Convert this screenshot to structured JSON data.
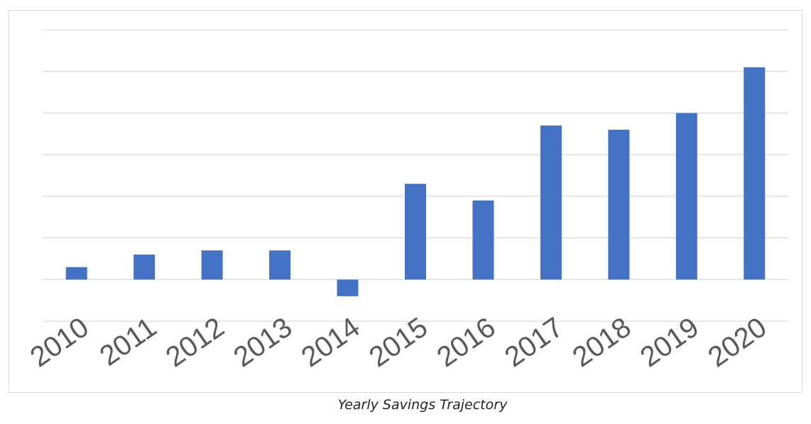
{
  "caption": "Yearly Savings Trajectory",
  "body_text": "",
  "colors": {
    "bar": "#4472C4",
    "gridline": "#d9d9d9",
    "tick_label": "#595959"
  },
  "chart_data": {
    "type": "bar",
    "title": "",
    "xlabel": "",
    "ylabel": "",
    "categories": [
      "2010",
      "2011",
      "2012",
      "2013",
      "2014",
      "2015",
      "2016",
      "2017",
      "2018",
      "2019",
      "2020"
    ],
    "series": [
      {
        "values": [
          0.3,
          0.6,
          0.7,
          0.7,
          -0.4,
          2.3,
          1.9,
          3.7,
          3.6,
          4.0,
          5.1
        ]
      }
    ],
    "ylim": [
      -1,
      6
    ],
    "grid": true,
    "legend": "none",
    "y_tick_labels_visible": false
  }
}
